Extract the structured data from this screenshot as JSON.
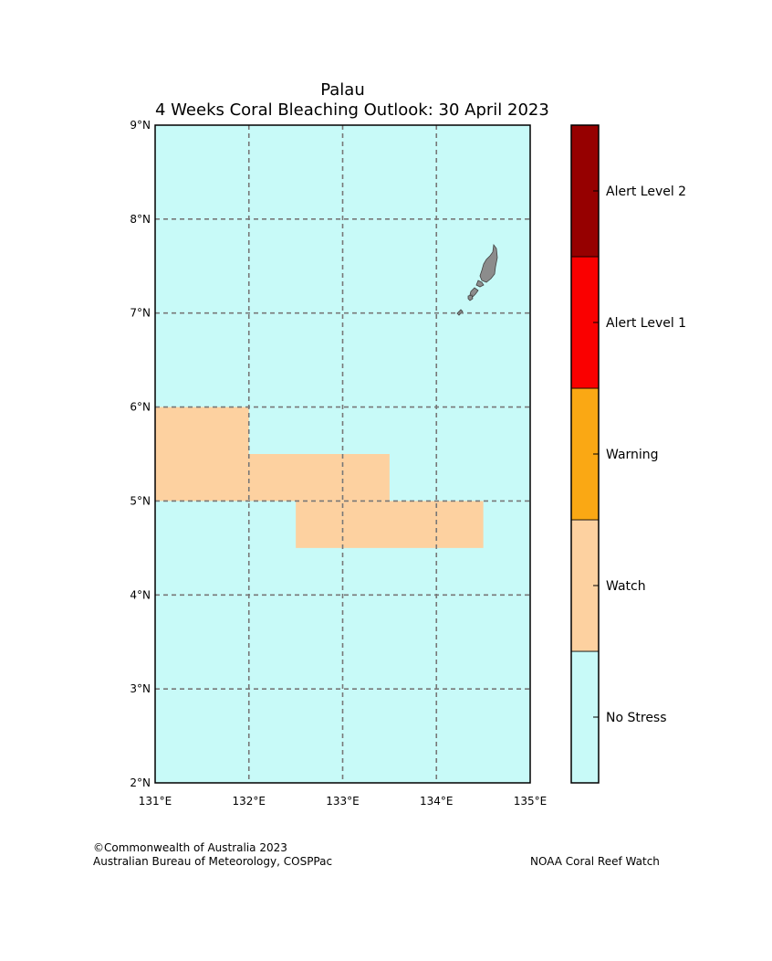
{
  "title": {
    "line1": "Palau",
    "line2": "4 Weeks Coral Bleaching Outlook: 30 April 2023"
  },
  "map": {
    "lon_range": [
      131,
      135
    ],
    "lat_range": [
      2,
      9
    ],
    "gridlines": "dashed",
    "x_tick_labels": [
      "131°E",
      "132°E",
      "133°E",
      "134°E",
      "135°E"
    ],
    "y_tick_labels": [
      "2°N",
      "3°N",
      "4°N",
      "5°N",
      "6°N",
      "7°N",
      "8°N",
      "9°N"
    ],
    "background_level": "No Stress",
    "stress_regions": [
      {
        "level": "Watch",
        "lon": [
          131.0,
          132.0
        ],
        "lat": [
          5.5,
          6.0
        ]
      },
      {
        "level": "Watch",
        "lon": [
          131.0,
          133.5
        ],
        "lat": [
          5.0,
          5.5
        ]
      },
      {
        "level": "Watch",
        "lon": [
          132.5,
          134.5
        ],
        "lat": [
          4.5,
          5.0
        ]
      }
    ],
    "land_color": "#8c8c8c"
  },
  "legend": {
    "levels": [
      {
        "label": "No Stress",
        "color": "#c8faf8"
      },
      {
        "label": "Watch",
        "color": "#fdd1a0"
      },
      {
        "label": "Warning",
        "color": "#faa814"
      },
      {
        "label": "Alert Level 1",
        "color": "#fa0000"
      },
      {
        "label": "Alert Level 2",
        "color": "#960000"
      }
    ]
  },
  "credits": {
    "left_line1": "©Commonwealth of Australia 2023",
    "left_line2": "Australian Bureau of Meteorology, COSPPac",
    "right": "NOAA Coral Reef Watch"
  }
}
